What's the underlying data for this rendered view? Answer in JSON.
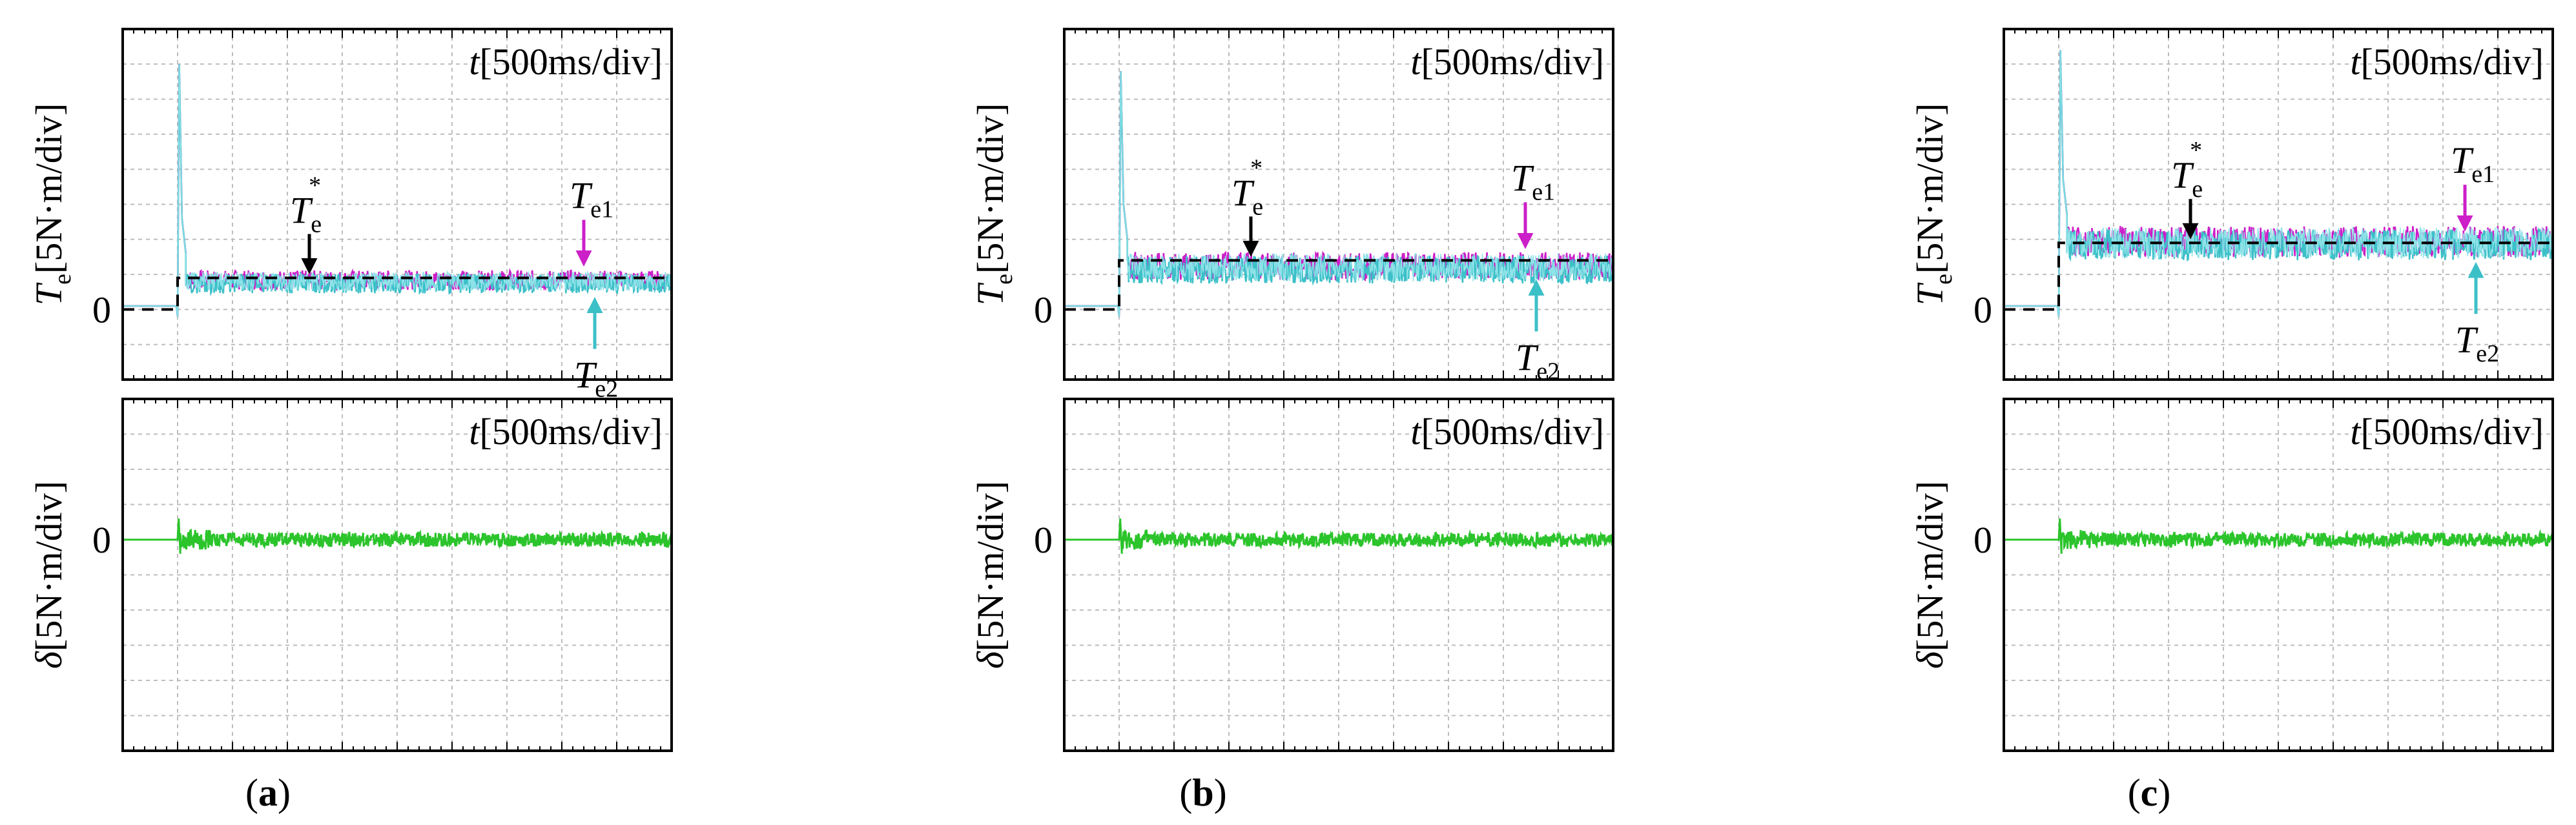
{
  "figure": {
    "subfigures": [
      {
        "label": "a",
        "caption_open": "(",
        "caption_close": ")"
      },
      {
        "label": "b",
        "caption_open": "(",
        "caption_close": ")"
      },
      {
        "label": "c",
        "caption_open": "(",
        "caption_close": ")"
      }
    ]
  },
  "colors": {
    "te1": "#cc1fc8",
    "te2": "#3cc0c8",
    "te2_light": "#8fe3e8",
    "ref": "#000000",
    "delta": "#2bc42b",
    "grid": "#bdbdbd",
    "frame": "#000000"
  },
  "chart_data": [
    {
      "id": "a-torque",
      "type": "line",
      "title_var": "t",
      "title_unit": "[500ms/div]",
      "ylabel_var": "T",
      "ylabel_sub": "e",
      "ylabel_unit": "[5N·m/div]",
      "ytick": "0",
      "ylim": [
        -1,
        4
      ],
      "xlim": [
        0,
        10
      ],
      "step_time": 1.0,
      "pre_level": 0.05,
      "ref_level": 0.45,
      "mean_level": 0.4,
      "noise": 0.14,
      "spike_peak": 3.5,
      "grid": true,
      "series": [
        {
          "name": "Te*",
          "style": "dashed"
        },
        {
          "name": "Te1"
        },
        {
          "name": "Te2"
        }
      ],
      "annotations": {
        "ref_var": "T",
        "ref_sub": "e",
        "ref_sup": "*",
        "te1_var": "T",
        "te1_sub": "e1",
        "te2_var": "T",
        "te2_sub": "e2"
      }
    },
    {
      "id": "a-delta",
      "type": "line",
      "title_var": "t",
      "title_unit": "[500ms/div]",
      "ylabel_var": "δ",
      "ylabel_unit": "[5N·m/div]",
      "ytick": "0",
      "ylim": [
        -3,
        2
      ],
      "xlim": [
        0,
        10
      ],
      "step_time": 1.0,
      "mean_level": 0.0,
      "noise": 0.1,
      "spike_peak": 0.3,
      "grid": true,
      "series": [
        {
          "name": "δ"
        }
      ]
    },
    {
      "id": "b-torque",
      "type": "line",
      "title_var": "t",
      "title_unit": "[500ms/div]",
      "ylabel_var": "T",
      "ylabel_sub": "e",
      "ylabel_unit": "[5N·m/div]",
      "ytick": "0",
      "ylim": [
        -1,
        4
      ],
      "xlim": [
        0,
        10
      ],
      "step_time": 1.0,
      "pre_level": 0.05,
      "ref_level": 0.7,
      "mean_level": 0.6,
      "noise": 0.2,
      "spike_peak": 3.4,
      "grid": true,
      "series": [
        {
          "name": "Te*",
          "style": "dashed"
        },
        {
          "name": "Te1"
        },
        {
          "name": "Te2"
        }
      ],
      "annotations": {
        "ref_var": "T",
        "ref_sub": "e",
        "ref_sup": "*",
        "te1_var": "T",
        "te1_sub": "e1",
        "te2_var": "T",
        "te2_sub": "e2"
      }
    },
    {
      "id": "b-delta",
      "type": "line",
      "title_var": "t",
      "title_unit": "[500ms/div]",
      "ylabel_var": "δ",
      "ylabel_unit": "[5N·m/div]",
      "ytick": "0",
      "ylim": [
        -3,
        2
      ],
      "xlim": [
        0,
        10
      ],
      "step_time": 1.0,
      "mean_level": 0.0,
      "noise": 0.1,
      "spike_peak": 0.3,
      "grid": true,
      "series": [
        {
          "name": "δ"
        }
      ]
    },
    {
      "id": "c-torque",
      "type": "line",
      "title_var": "t",
      "title_unit": "[500ms/div]",
      "ylabel_var": "T",
      "ylabel_sub": "e",
      "ylabel_unit": "[5N·m/div]",
      "ytick": "0",
      "ylim": [
        -1,
        4
      ],
      "xlim": [
        0,
        10
      ],
      "step_time": 1.0,
      "pre_level": 0.05,
      "ref_level": 0.95,
      "mean_level": 0.95,
      "noise": 0.22,
      "spike_peak": 3.7,
      "grid": true,
      "series": [
        {
          "name": "Te*",
          "style": "dashed"
        },
        {
          "name": "Te1"
        },
        {
          "name": "Te2"
        }
      ],
      "annotations": {
        "ref_var": "T",
        "ref_sub": "e",
        "ref_sup": "*",
        "te1_var": "T",
        "te1_sub": "e1",
        "te2_var": "T",
        "te2_sub": "e2"
      }
    },
    {
      "id": "c-delta",
      "type": "line",
      "title_var": "t",
      "title_unit": "[500ms/div]",
      "ylabel_var": "δ",
      "ylabel_unit": "[5N·m/div]",
      "ytick": "0",
      "ylim": [
        -3,
        2
      ],
      "xlim": [
        0,
        10
      ],
      "step_time": 1.0,
      "mean_level": 0.0,
      "noise": 0.1,
      "spike_peak": 0.3,
      "grid": true,
      "series": [
        {
          "name": "δ"
        }
      ]
    }
  ]
}
